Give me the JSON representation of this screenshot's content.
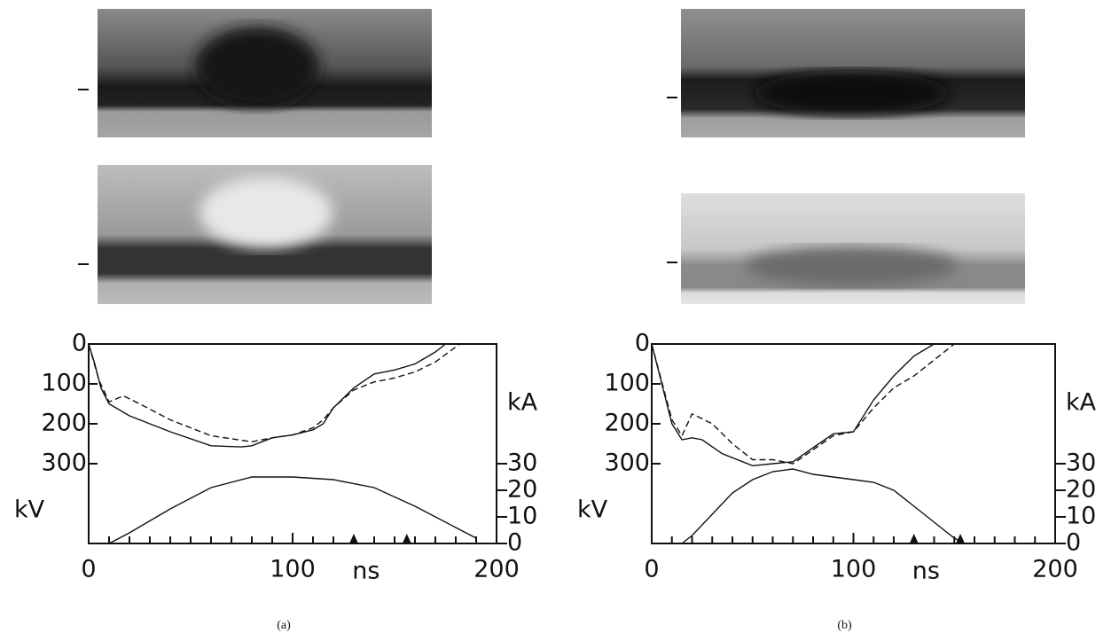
{
  "chart_data": [
    {
      "type": "line",
      "caption": "(a)",
      "x_label": "ns",
      "y_label": "kV",
      "y2_label": "kA",
      "xlim": [
        0,
        200
      ],
      "xticks": [
        0,
        100,
        200
      ],
      "xminor_ticks": [
        10,
        20,
        30,
        40,
        50,
        60,
        70,
        80,
        90,
        110,
        120,
        130,
        140,
        150,
        160,
        170,
        180,
        190
      ],
      "ylim": [
        0,
        500
      ],
      "y_inverted": true,
      "yticks": [
        0,
        100,
        200,
        300
      ],
      "y2lim": [
        0,
        75
      ],
      "y2ticks": [
        0,
        10,
        20,
        30
      ],
      "markers": [
        130,
        156
      ],
      "series": [
        {
          "style": "solid",
          "color": "#111111",
          "x": [
            0,
            3,
            6,
            10,
            20,
            40,
            60,
            75,
            80,
            90,
            100,
            110,
            115,
            120,
            130,
            140,
            150,
            160,
            170,
            175
          ],
          "values": [
            0,
            50,
            110,
            150,
            180,
            220,
            255,
            258,
            255,
            235,
            228,
            215,
            200,
            160,
            110,
            75,
            65,
            50,
            20,
            0
          ]
        },
        {
          "style": "dashed",
          "color": "#111111",
          "x": [
            0,
            5,
            10,
            17,
            25,
            40,
            60,
            80,
            90,
            100,
            110,
            115,
            120,
            130,
            140,
            150,
            160,
            170,
            182
          ],
          "values": [
            0,
            90,
            145,
            130,
            150,
            190,
            230,
            245,
            235,
            228,
            210,
            190,
            160,
            115,
            95,
            85,
            70,
            45,
            0
          ]
        },
        {
          "style": "solid",
          "color": "#111111",
          "axis": "y2",
          "x": [
            10,
            20,
            40,
            60,
            80,
            100,
            120,
            140,
            160,
            180,
            190
          ],
          "values": [
            0,
            4,
            13,
            21,
            25,
            25,
            24,
            21,
            14,
            6,
            2
          ]
        }
      ]
    },
    {
      "type": "line",
      "caption": "(b)",
      "x_label": "ns",
      "y_label": "kV",
      "y2_label": "kA",
      "xlim": [
        0,
        200
      ],
      "xticks": [
        0,
        100,
        200
      ],
      "xminor_ticks": [
        10,
        20,
        30,
        40,
        50,
        60,
        70,
        80,
        90,
        110,
        120,
        130,
        140,
        150,
        160,
        170,
        180,
        190
      ],
      "ylim": [
        0,
        500
      ],
      "y_inverted": true,
      "yticks": [
        0,
        100,
        200,
        300
      ],
      "y2lim": [
        0,
        75
      ],
      "y2ticks": [
        0,
        10,
        20,
        30
      ],
      "markers": [
        130,
        153
      ],
      "series": [
        {
          "style": "solid",
          "color": "#111111",
          "x": [
            0,
            5,
            10,
            15,
            20,
            25,
            35,
            50,
            60,
            70,
            80,
            90,
            100,
            110,
            120,
            130,
            140
          ],
          "values": [
            0,
            100,
            200,
            240,
            235,
            240,
            275,
            305,
            300,
            295,
            260,
            225,
            220,
            140,
            80,
            30,
            0
          ]
        },
        {
          "style": "dashed",
          "color": "#111111",
          "x": [
            0,
            10,
            15,
            20,
            30,
            40,
            50,
            60,
            70,
            80,
            90,
            100,
            110,
            120,
            130,
            140,
            150
          ],
          "values": [
            0,
            190,
            230,
            175,
            200,
            250,
            290,
            290,
            300,
            265,
            230,
            220,
            160,
            110,
            80,
            40,
            0
          ]
        },
        {
          "style": "solid",
          "color": "#111111",
          "axis": "y2",
          "x": [
            15,
            20,
            30,
            40,
            50,
            60,
            70,
            80,
            90,
            100,
            110,
            120,
            130,
            140,
            150,
            155
          ],
          "values": [
            0,
            3,
            11,
            19,
            24,
            27,
            28,
            26,
            25,
            24,
            23,
            20,
            14,
            8,
            2,
            0
          ]
        }
      ]
    }
  ]
}
